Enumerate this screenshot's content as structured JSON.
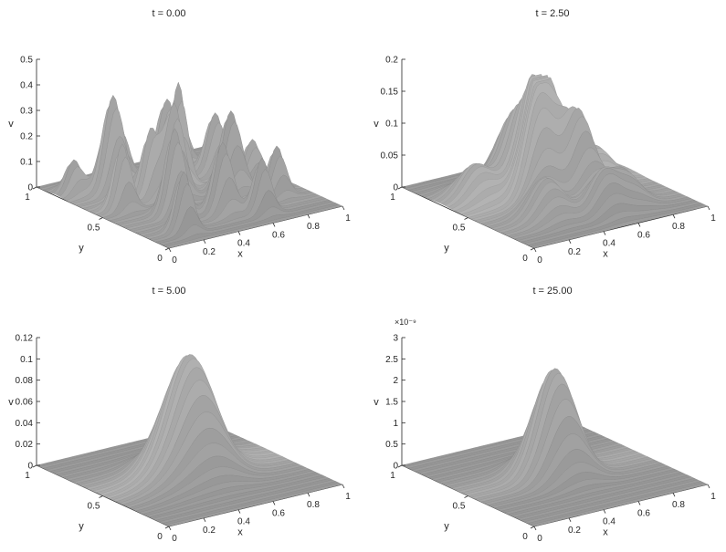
{
  "chart_data": [
    {
      "type": "surface",
      "title": "t = 0.00",
      "xlabel": "x",
      "ylabel": "y",
      "zlabel": "v",
      "xlim": [
        0,
        1
      ],
      "ylim": [
        0,
        1
      ],
      "zlim": [
        0,
        0.5
      ],
      "x_ticks": [
        "0",
        "0.2",
        "0.4",
        "0.6",
        "0.8",
        "1"
      ],
      "y_ticks": [
        "0",
        "0.5",
        "1"
      ],
      "z_ticks": [
        "0",
        "0.1",
        "0.2",
        "0.3",
        "0.4",
        "0.5"
      ],
      "z_exponent": "",
      "surface_shape": "many narrow peaks",
      "max_value": 0.42
    },
    {
      "type": "surface",
      "title": "t = 2.50",
      "xlabel": "x",
      "ylabel": "y",
      "zlabel": "v",
      "xlim": [
        0,
        1
      ],
      "ylim": [
        0,
        1
      ],
      "zlim": [
        0,
        0.2
      ],
      "x_ticks": [
        "0",
        "0.2",
        "0.4",
        "0.6",
        "0.8",
        "1"
      ],
      "y_ticks": [
        "0",
        "0.5",
        "1"
      ],
      "z_ticks": [
        "0",
        "0.05",
        "0.1",
        "0.15",
        "0.2"
      ],
      "z_exponent": "",
      "surface_shape": "merging peaks around center",
      "max_value": 0.17
    },
    {
      "type": "surface",
      "title": "t = 5.00",
      "xlabel": "x",
      "ylabel": "y",
      "zlabel": "v",
      "xlim": [
        0,
        1
      ],
      "ylim": [
        0,
        1
      ],
      "zlim": [
        0,
        0.12
      ],
      "x_ticks": [
        "0",
        "0.2",
        "0.4",
        "0.6",
        "0.8",
        "1"
      ],
      "y_ticks": [
        "0",
        "0.5",
        "1"
      ],
      "z_ticks": [
        "0",
        "0.02",
        "0.04",
        "0.06",
        "0.08",
        "0.1",
        "0.12"
      ],
      "z_exponent": "",
      "surface_shape": "single central peak with ripples",
      "max_value": 0.11
    },
    {
      "type": "surface",
      "title": "t = 25.00",
      "xlabel": "x",
      "ylabel": "y",
      "zlabel": "v",
      "xlim": [
        0,
        1
      ],
      "ylim": [
        0,
        1
      ],
      "zlim": [
        0,
        3
      ],
      "x_ticks": [
        "0",
        "0.2",
        "0.4",
        "0.6",
        "0.8",
        "1"
      ],
      "y_ticks": [
        "0",
        "0.5",
        "1"
      ],
      "z_ticks": [
        "0",
        "0.5",
        "1",
        "1.5",
        "2",
        "2.5",
        "3"
      ],
      "z_exponent": "×10⁻⁹",
      "surface_shape": "single smooth central peak",
      "max_value": 2.5
    }
  ]
}
